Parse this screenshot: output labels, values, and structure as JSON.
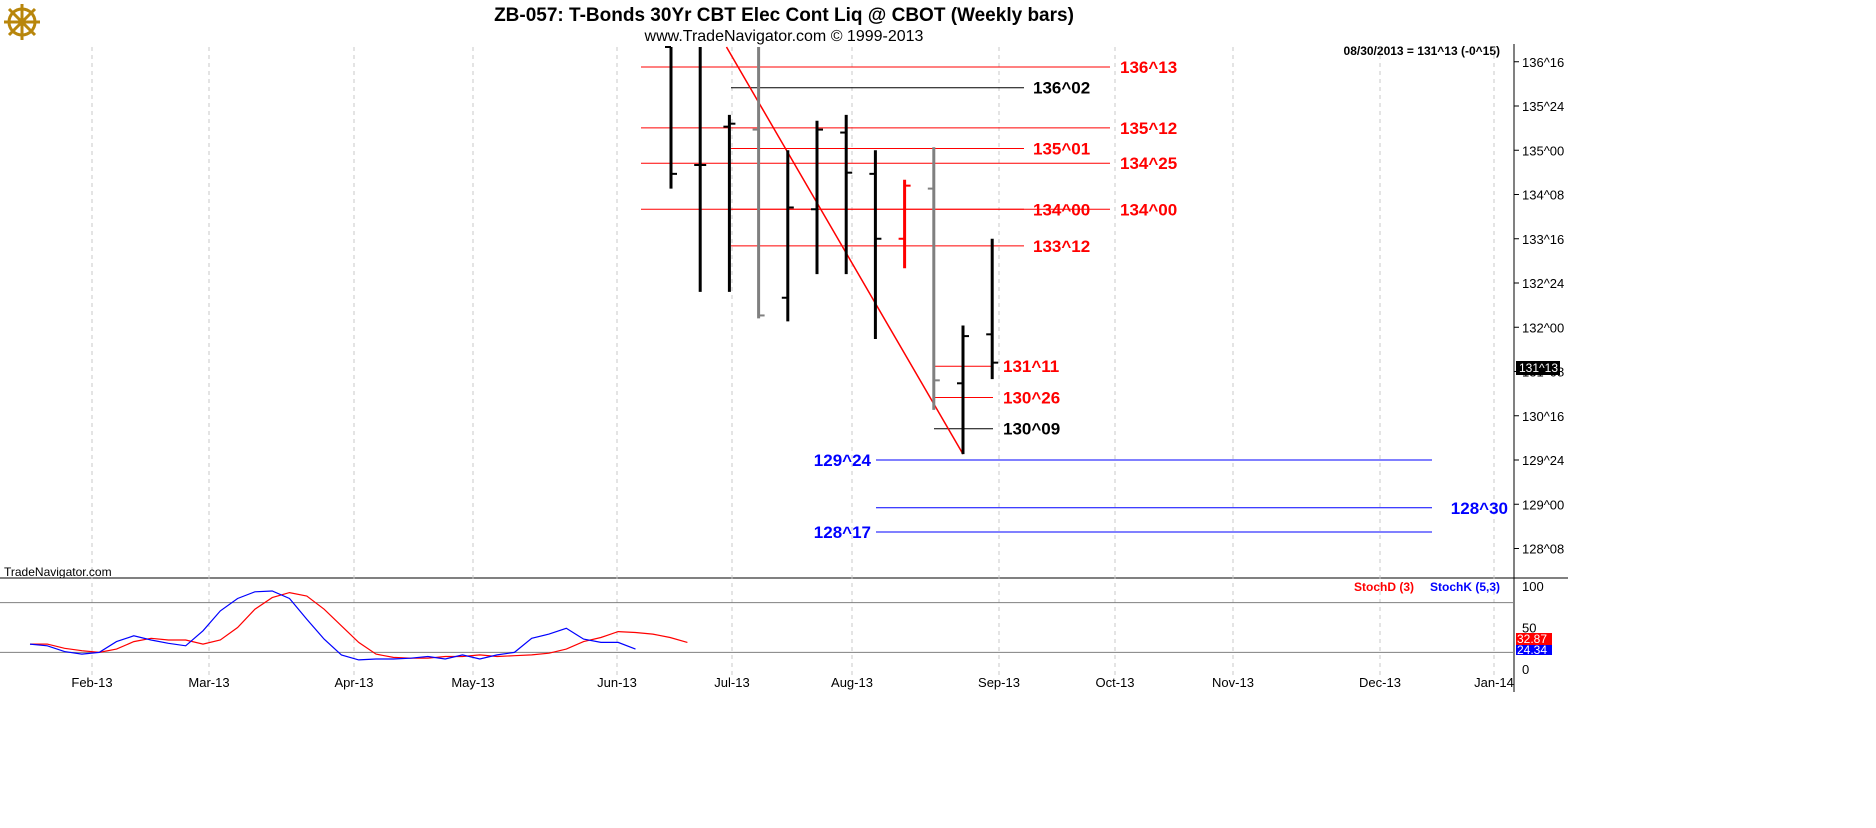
{
  "header": {
    "title": "ZB-057:  T-Bonds 30Yr CBT Elec Cont Liq @ CBOT  (Weekly bars)",
    "subtitle": "www.TradeNavigator.com © 1999-2013",
    "info": "08/30/2013 = 131^13 (-0^15)",
    "watermark": "TradeNavigator.com",
    "logo_icon": "ship-wheel-logo-icon"
  },
  "colors": {
    "bar": "#000000",
    "bar_gray": "#808080",
    "bar_red": "#ff0000",
    "support": "#0000ff",
    "resistance": "#ff0000",
    "neutral": "#000000",
    "grid": "#c8c8c8",
    "stoch_d": "#ff0000",
    "stoch_k": "#0000ff"
  },
  "chart_data": [
    {
      "type": "ohlc",
      "ylim": [
        127.75,
        136.75
      ],
      "y_ticks": [
        {
          "label": "136^16",
          "value": 136.5
        },
        {
          "label": "135^24",
          "value": 135.75
        },
        {
          "label": "135^00",
          "value": 135.0
        },
        {
          "label": "134^08",
          "value": 134.25
        },
        {
          "label": "133^16",
          "value": 133.5
        },
        {
          "label": "132^24",
          "value": 132.75
        },
        {
          "label": "132^00",
          "value": 132.0
        },
        {
          "label": "131^08",
          "value": 131.25
        },
        {
          "label": "130^16",
          "value": 130.5
        },
        {
          "label": "129^24",
          "value": 129.75
        },
        {
          "label": "129^00",
          "value": 129.0
        },
        {
          "label": "128^08",
          "value": 128.25
        }
      ],
      "x_ticks": [
        "Feb-13",
        "Mar-13",
        "Apr-13",
        "May-13",
        "Jun-13",
        "Jul-13",
        "Aug-13",
        "Sep-13",
        "Oct-13",
        "Nov-13",
        "Dec-13",
        "Jan-14"
      ],
      "last_price": "131^13",
      "bars": [
        {
          "week": 0,
          "open": 136.8,
          "high": 137.0,
          "low": 134.35,
          "close": 134.6,
          "color": "black"
        },
        {
          "week": 1,
          "open": 134.75,
          "high": 137.0,
          "low": 132.6,
          "close": 134.75,
          "color": "black"
        },
        {
          "week": 2,
          "open": 135.4,
          "high": 135.6,
          "low": 132.6,
          "close": 135.45,
          "color": "black"
        },
        {
          "week": 3,
          "open": 135.35,
          "high": 137.0,
          "low": 132.15,
          "close": 132.2,
          "color": "gray"
        },
        {
          "week": 4,
          "open": 132.5,
          "high": 135.0,
          "low": 132.1,
          "close": 134.03,
          "color": "black"
        },
        {
          "week": 5,
          "open": 134.0,
          "high": 135.5,
          "low": 132.9,
          "close": 135.35,
          "color": "black"
        },
        {
          "week": 6,
          "open": 135.3,
          "high": 135.6,
          "low": 132.9,
          "close": 134.62,
          "color": "black"
        },
        {
          "week": 7,
          "open": 134.6,
          "high": 135.0,
          "low": 131.8,
          "close": 133.5,
          "color": "black"
        },
        {
          "week": 8,
          "open": 133.5,
          "high": 134.5,
          "low": 133.0,
          "close": 134.4,
          "color": "red"
        },
        {
          "week": 9,
          "open": 134.35,
          "high": 135.05,
          "low": 130.6,
          "close": 131.1,
          "color": "gray"
        },
        {
          "week": 10,
          "open": 131.05,
          "high": 132.03,
          "low": 129.85,
          "close": 131.85,
          "color": "black"
        },
        {
          "week": 11,
          "open": 131.88,
          "high": 133.5,
          "low": 131.12,
          "close": 131.4,
          "color": "black"
        }
      ],
      "levels": [
        {
          "label": "136^13",
          "value": 136.41,
          "color": "red"
        },
        {
          "label": "136^02",
          "value": 136.06,
          "color": "black"
        },
        {
          "label": "135^12",
          "value": 135.38,
          "color": "red"
        },
        {
          "label": "135^01",
          "value": 135.03,
          "color": "red"
        },
        {
          "label": "134^25",
          "value": 134.78,
          "color": "red"
        },
        {
          "label": "134^00",
          "value": 134.0,
          "color": "red"
        },
        {
          "label": "134^00",
          "value": 134.0,
          "color": "red"
        },
        {
          "label": "133^12",
          "value": 133.38,
          "color": "red"
        },
        {
          "label": "131^11",
          "value": 131.34,
          "color": "red"
        },
        {
          "label": "130^26",
          "value": 130.81,
          "color": "red"
        },
        {
          "label": "130^09",
          "value": 130.28,
          "color": "black"
        },
        {
          "label": "129^24",
          "value": 129.75,
          "color": "blue"
        },
        {
          "label": "128^30",
          "value": 128.94,
          "color": "blue"
        },
        {
          "label": "128^17",
          "value": 128.53,
          "color": "blue"
        }
      ],
      "trendline": {
        "from_week": 1.9,
        "from_value": 137.0,
        "to_week": 10.0,
        "to_value": 129.85,
        "color": "red"
      }
    },
    {
      "type": "line",
      "title": "StochD (3)  StochK (5,3)",
      "ylim": [
        0,
        100
      ],
      "y_ticks": [
        100,
        50,
        0
      ],
      "reference_lines": [
        80,
        20
      ],
      "legend": [
        "StochD (3)",
        "StochK (5,3)"
      ],
      "last_values": {
        "StochD (3)": "32.87",
        "StochK (5,3)": "24.34"
      },
      "series": [
        {
          "name": "StochD (3)",
          "color": "red",
          "values": [
            30,
            30,
            25,
            22,
            20,
            24,
            33,
            37,
            35,
            35,
            30,
            35,
            50,
            72,
            86,
            92,
            88,
            72,
            52,
            32,
            18,
            14,
            13,
            13,
            15,
            15,
            17,
            15,
            16,
            17,
            19,
            24,
            33,
            38,
            45,
            44,
            42,
            38,
            32
          ]
        },
        {
          "name": "StochK (5,3)",
          "color": "blue",
          "values": [
            30,
            28,
            21,
            18,
            20,
            33,
            40,
            35,
            31,
            28,
            46,
            70,
            85,
            93,
            94,
            85,
            60,
            36,
            17,
            11,
            12,
            12,
            13,
            15,
            12,
            17,
            12,
            17,
            20,
            37,
            42,
            49,
            36,
            32,
            32,
            24
          ]
        }
      ]
    }
  ]
}
